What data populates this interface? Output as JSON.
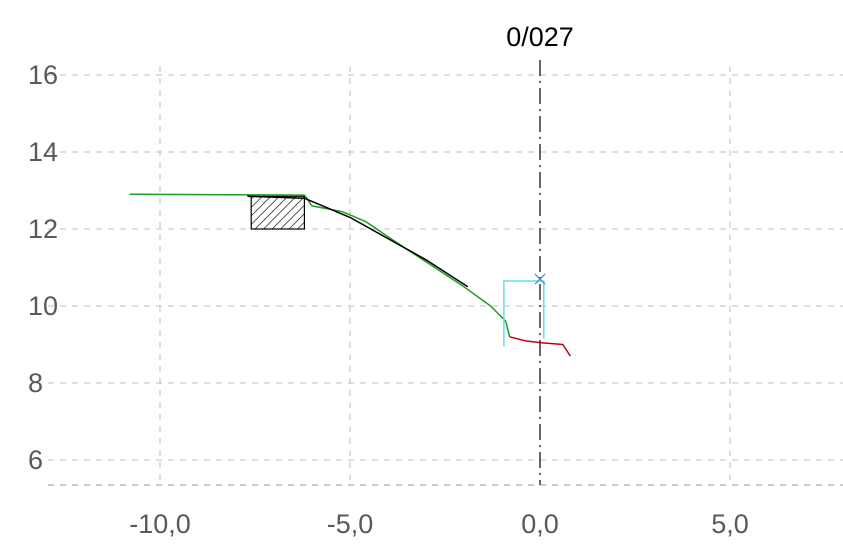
{
  "chart_data": {
    "type": "line",
    "title": "",
    "xlabel": "",
    "ylabel": "",
    "xlim": [
      -13,
      8
    ],
    "ylim": [
      5,
      17
    ],
    "x_ticks": [
      -10,
      -5,
      0,
      5
    ],
    "x_tick_labels": [
      "-10,0",
      "-5,0",
      "0,0",
      "5,0"
    ],
    "y_ticks": [
      6,
      8,
      10,
      12,
      14,
      16
    ],
    "y_tick_labels": [
      "6",
      "8",
      "10",
      "12",
      "14",
      "16"
    ],
    "grid": true,
    "legend": "none",
    "centerline": {
      "x": 0,
      "label": "0/027"
    },
    "series": [
      {
        "color": "#1a9e1a",
        "points": [
          [
            -10.8,
            12.9
          ],
          [
            -6.2,
            12.88
          ],
          [
            -6.0,
            12.6
          ],
          [
            -5.2,
            12.45
          ],
          [
            -4.6,
            12.2
          ],
          [
            -3.7,
            11.6
          ],
          [
            -3.0,
            11.15
          ],
          [
            -2.0,
            10.5
          ],
          [
            -1.3,
            10.0
          ],
          [
            -0.9,
            9.6
          ],
          [
            -0.8,
            9.2
          ]
        ]
      },
      {
        "color": "#000000",
        "points": [
          [
            -7.7,
            12.85
          ],
          [
            -6.2,
            12.8
          ],
          [
            -5.0,
            12.3
          ],
          [
            -4.0,
            11.75
          ],
          [
            -3.0,
            11.2
          ],
          [
            -1.9,
            10.5
          ]
        ]
      },
      {
        "color": "#c00000",
        "points": [
          [
            -0.8,
            9.2
          ],
          [
            -0.4,
            9.1
          ],
          [
            0.0,
            9.05
          ],
          [
            0.6,
            9.0
          ],
          [
            0.8,
            8.7
          ]
        ]
      },
      {
        "color": "#5ce1e6",
        "points": [
          [
            -0.95,
            8.95
          ],
          [
            -0.95,
            10.65
          ],
          [
            0.1,
            10.65
          ],
          [
            0.1,
            9.15
          ]
        ]
      }
    ],
    "hatched_box": {
      "x": [
        -7.6,
        -6.2
      ],
      "y": [
        12.0,
        12.85
      ]
    },
    "marker": {
      "x": 0,
      "y": 10.7,
      "shape": "x",
      "color": "#4a8bc8"
    }
  }
}
